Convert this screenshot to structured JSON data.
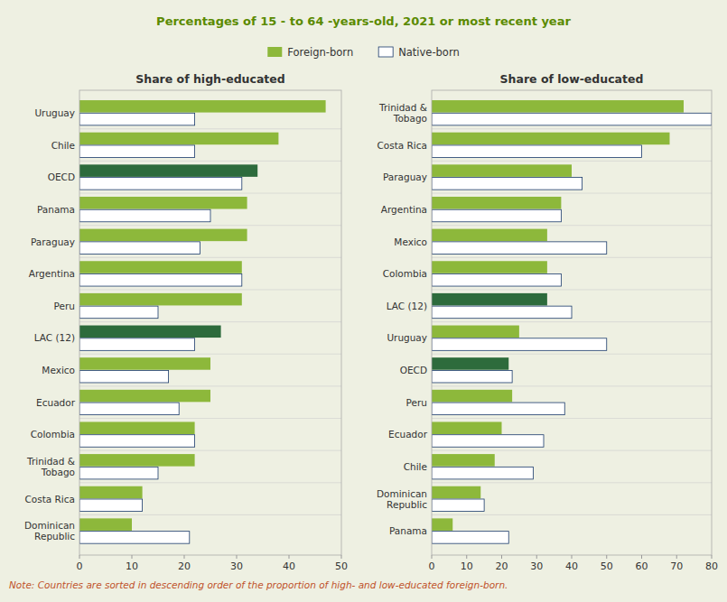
{
  "title": "Percentages of 15 - to 64 -years-old, 2021 or most recent year",
  "annotations": [
    "Note: Countries are sorted in descending order of the proportion of high- and low-educated foreign-born."
  ],
  "chart_data": [
    {
      "type": "bar",
      "orientation": "horizontal",
      "title": "Share of high-educated",
      "categories": [
        "Dominican\nRepublic",
        "Costa Rica",
        "Trinidad &\nTobago",
        "Colombia",
        "Ecuador",
        "Mexico",
        "LAC (12)",
        "Peru",
        "Argentina",
        "Paraguay",
        "Panama",
        "OECD",
        "Chile",
        "Uruguay"
      ],
      "series": [
        {
          "name": "Foreign-born",
          "color": "#8db83b",
          "colors": [
            "#8db83b",
            "#8db83b",
            "#8db83b",
            "#8db83b",
            "#8db83b",
            "#8db83b",
            "#2d6b3c",
            "#8db83b",
            "#8db83b",
            "#8db83b",
            "#8db83b",
            "#2d6b3c",
            "#8db83b",
            "#8db83b"
          ],
          "values": [
            10,
            12,
            22,
            22,
            25,
            25,
            27,
            31,
            31,
            32,
            32,
            34,
            38,
            47
          ]
        },
        {
          "name": "Native-born",
          "color": "#ffffff",
          "values": [
            21,
            12,
            15,
            22,
            19,
            17,
            22,
            15,
            31,
            23,
            25,
            31,
            22,
            22
          ]
        }
      ],
      "xlim": [
        0,
        50
      ],
      "xticks": [
        0,
        10,
        20,
        30,
        40,
        50
      ],
      "grid": false,
      "legend": "top"
    },
    {
      "type": "bar",
      "orientation": "horizontal",
      "title": "Share of low-educated",
      "categories": [
        "Panama",
        "Dominican\nRepublic",
        "Chile",
        "Ecuador",
        "Peru",
        "OECD",
        "Uruguay",
        "LAC (12)",
        "Colombia",
        "Mexico",
        "Argentina",
        "Paraguay",
        "Costa Rica",
        "Trinidad &\nTobago"
      ],
      "series": [
        {
          "name": "Foreign-born",
          "color": "#8db83b",
          "colors": [
            "#8db83b",
            "#8db83b",
            "#8db83b",
            "#8db83b",
            "#8db83b",
            "#2d6b3c",
            "#8db83b",
            "#2d6b3c",
            "#8db83b",
            "#8db83b",
            "#8db83b",
            "#8db83b",
            "#8db83b",
            "#8db83b"
          ],
          "values": [
            6,
            14,
            18,
            20,
            23,
            22,
            25,
            33,
            33,
            33,
            37,
            40,
            68,
            72
          ]
        },
        {
          "name": "Native-born",
          "color": "#ffffff",
          "values": [
            22,
            15,
            29,
            32,
            38,
            23,
            50,
            40,
            37,
            50,
            37,
            43,
            60,
            80
          ]
        }
      ],
      "xlim": [
        0,
        80
      ],
      "xticks": [
        0,
        10,
        20,
        30,
        40,
        50,
        60,
        70,
        80
      ],
      "grid": false
    }
  ]
}
